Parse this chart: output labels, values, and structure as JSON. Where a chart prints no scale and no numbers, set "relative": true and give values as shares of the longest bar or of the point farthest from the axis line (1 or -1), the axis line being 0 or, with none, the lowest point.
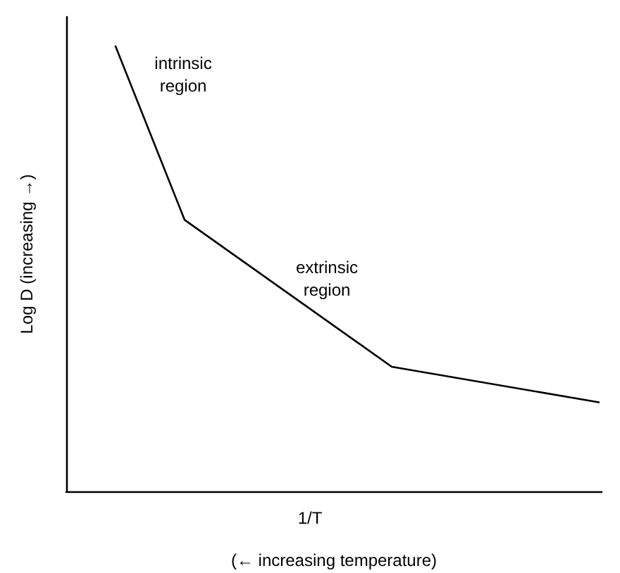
{
  "chart_data": {
    "type": "line",
    "relative": true,
    "xlabel": "1/T",
    "ylabel": "Log D (increasing →)",
    "categories": [
      null,
      null,
      null,
      null,
      null,
      null,
      null,
      null,
      null
    ],
    "series": [
      {
        "color": "#000000",
        "values": [
          null,
          1,
          0.61,
          null,
          null,
          0.28,
          null,
          null,
          0.2
        ]
      }
    ],
    "marker": "none",
    "line_style": "solid",
    "grid": false,
    "annotations": [
      "intrinsic\nregion",
      "extrinsic\nregion",
      "(← increasing temperature)"
    ]
  }
}
